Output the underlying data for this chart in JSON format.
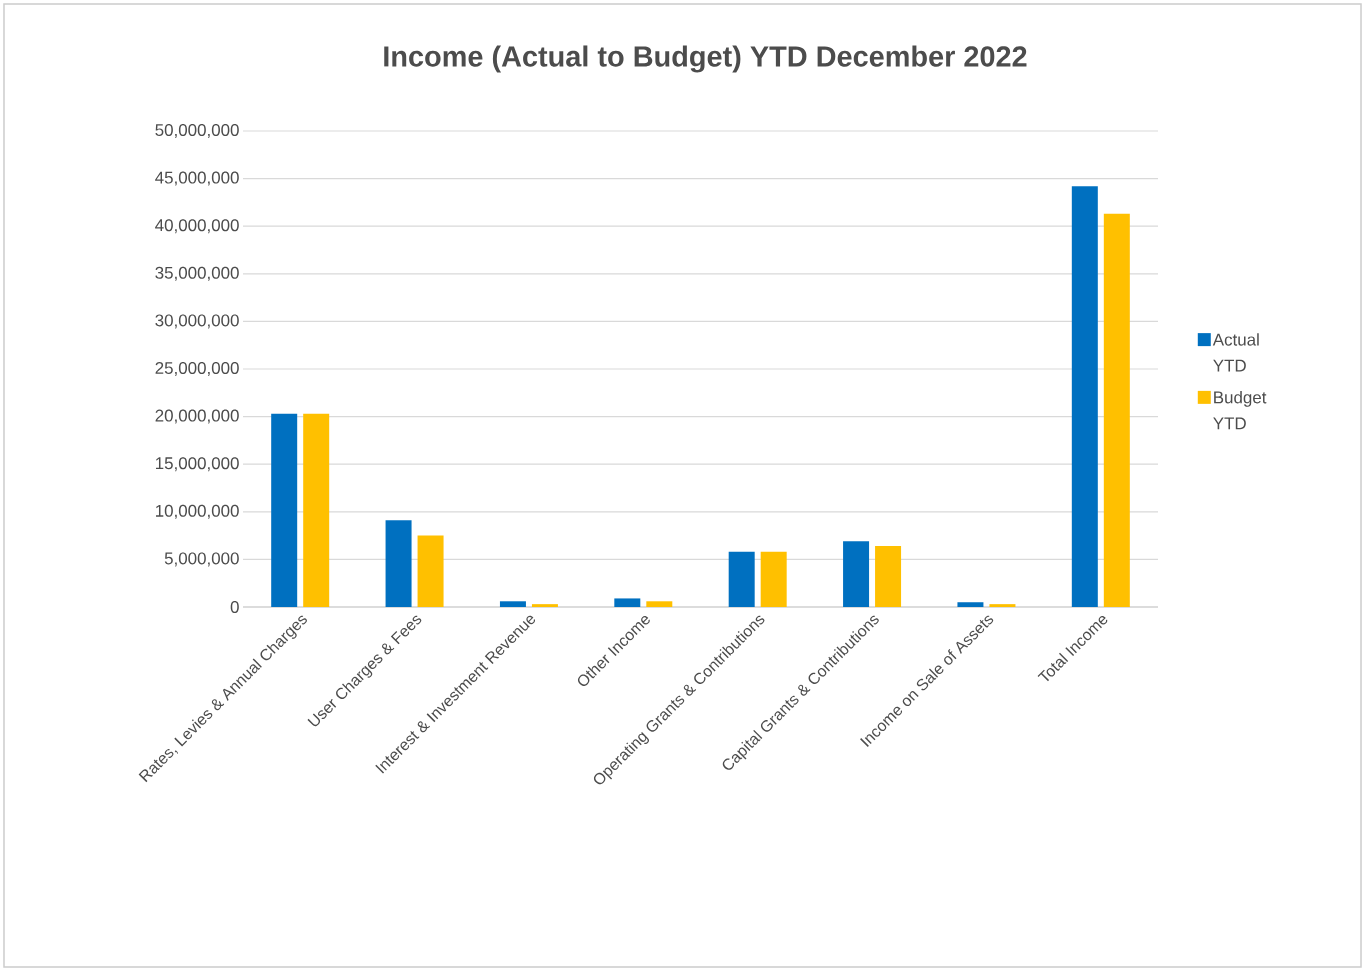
{
  "chart_data": {
    "type": "bar",
    "title": "Income (Actual to Budget) YTD December 2022",
    "categories": [
      "Rates, Levies & Annual Charges",
      "User Charges & Fees",
      "Interest & Investment Revenue",
      "Other Income",
      "Operating Grants & Contributions",
      "Capital Grants & Contributions",
      "Income on Sale of Assets",
      "Total Income"
    ],
    "series": [
      {
        "name": "Actual YTD",
        "color": "#0070c0",
        "values": [
          20300000,
          9100000,
          600000,
          900000,
          5800000,
          6900000,
          500000,
          44200000
        ]
      },
      {
        "name": "Budget YTD",
        "color": "#ffc000",
        "values": [
          20300000,
          7500000,
          300000,
          600000,
          5800000,
          6400000,
          300000,
          41300000
        ]
      }
    ],
    "ylim": [
      0,
      50000000
    ],
    "yticks": [
      {
        "value": 0,
        "label": "0"
      },
      {
        "value": 5000000,
        "label": "5,000,000"
      },
      {
        "value": 10000000,
        "label": "10,000,000"
      },
      {
        "value": 15000000,
        "label": "15,000,000"
      },
      {
        "value": 20000000,
        "label": "20,000,000"
      },
      {
        "value": 25000000,
        "label": "25,000,000"
      },
      {
        "value": 30000000,
        "label": "30,000,000"
      },
      {
        "value": 35000000,
        "label": "35,000,000"
      },
      {
        "value": 40000000,
        "label": "40,000,000"
      },
      {
        "value": 45000000,
        "label": "45,000,000"
      },
      {
        "value": 50000000,
        "label": "50,000,000"
      }
    ],
    "grid": "y",
    "legend": "right"
  }
}
